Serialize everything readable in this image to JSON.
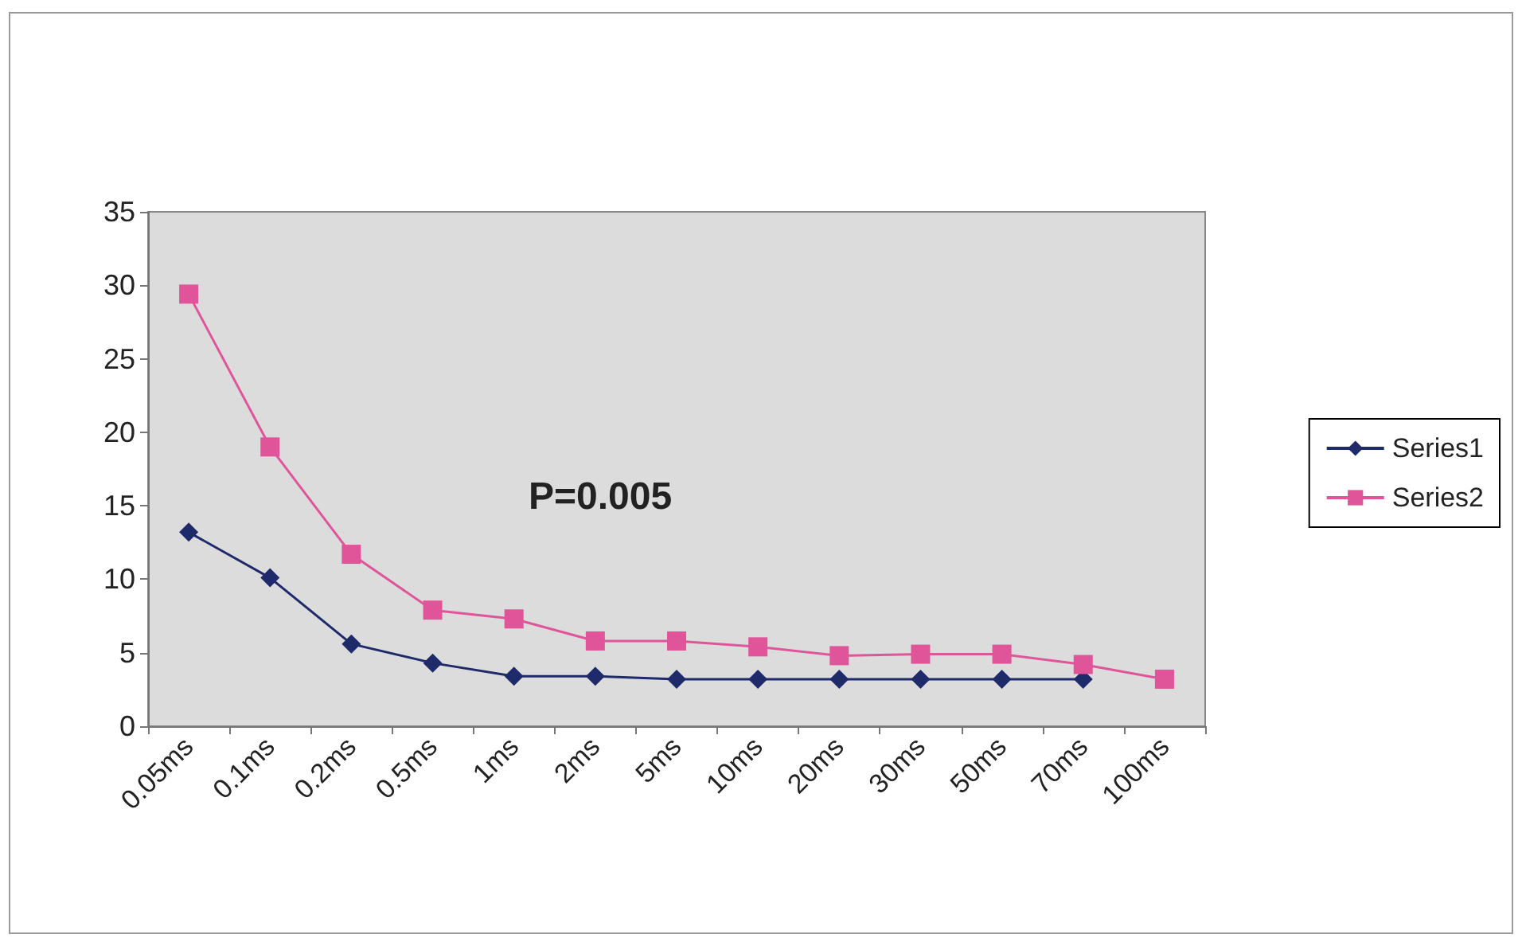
{
  "chart_data": {
    "type": "line",
    "categories": [
      "0.05ms",
      "0.1ms",
      "0.2ms",
      "0.5ms",
      "1ms",
      "2ms",
      "5ms",
      "10ms",
      "20ms",
      "30ms",
      "50ms",
      "70ms",
      "100ms"
    ],
    "series": [
      {
        "name": "Series1",
        "color": "#1f2a6b",
        "marker": "diamond",
        "values": [
          13.2,
          10.1,
          5.6,
          4.3,
          3.4,
          3.4,
          3.2,
          3.2,
          3.2,
          3.2,
          3.2,
          3.2,
          null
        ]
      },
      {
        "name": "Series2",
        "color": "#e0559a",
        "marker": "square",
        "values": [
          29.4,
          19,
          11.7,
          7.9,
          7.3,
          5.8,
          5.8,
          5.4,
          4.8,
          4.9,
          4.9,
          4.2,
          3.2
        ]
      }
    ],
    "ylim": [
      0,
      35
    ],
    "yticks": [
      0,
      5,
      10,
      15,
      20,
      25,
      30,
      35
    ],
    "grid": false,
    "legend": "right",
    "annotations": [
      "P=0.005"
    ]
  }
}
